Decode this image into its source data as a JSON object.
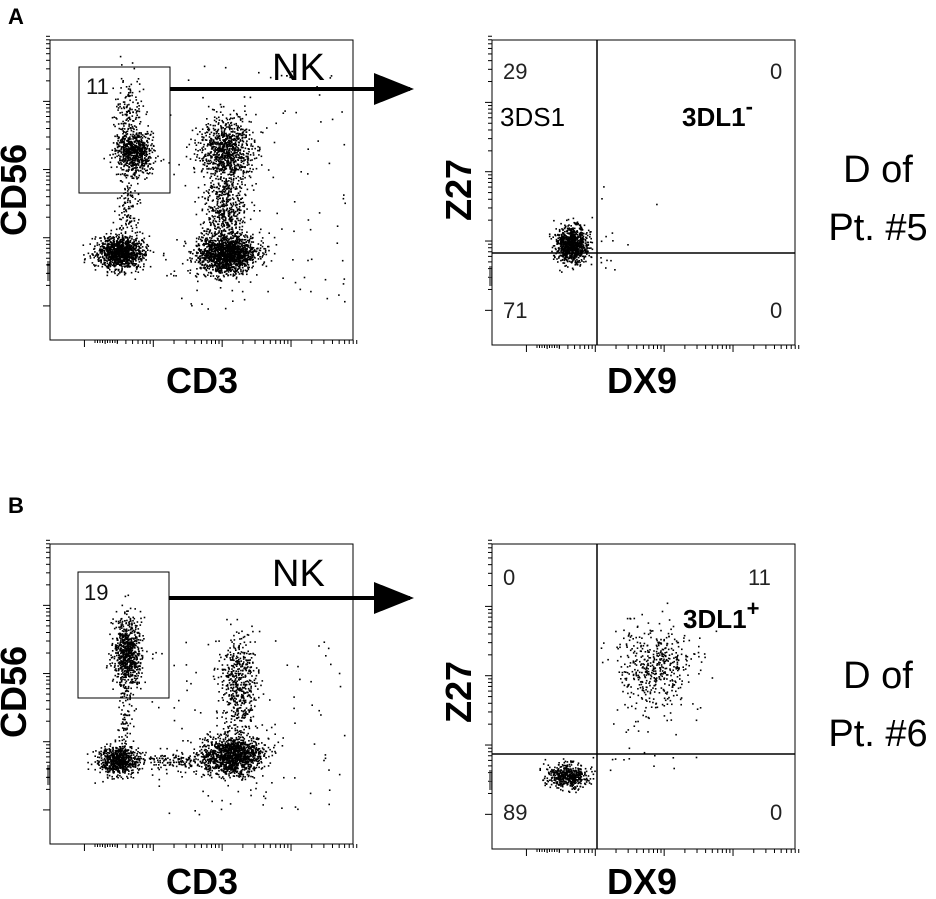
{
  "panels": [
    {
      "letter": "A",
      "gate_plot": {
        "x_label": "CD3",
        "y_label": "CD56",
        "gate_value": "11",
        "gate_name": "NK"
      },
      "quad_plot": {
        "x_label": "DX9",
        "y_label": "Z27",
        "q_ul": "29",
        "q_ur": "0",
        "q_ll": "71",
        "q_lr": "0",
        "pop_left": "3DS1",
        "pop_right": "3DL1",
        "pop_right_sup": "-"
      },
      "donor": [
        "D of",
        "Pt. #5"
      ]
    },
    {
      "letter": "B",
      "gate_plot": {
        "x_label": "CD3",
        "y_label": "CD56",
        "gate_value": "19",
        "gate_name": "NK"
      },
      "quad_plot": {
        "x_label": "DX9",
        "y_label": "Z27",
        "q_ul": "0",
        "q_ur": "11",
        "q_ll": "89",
        "q_lr": "0",
        "pop_left": "",
        "pop_right": "3DL1",
        "pop_right_sup": "+"
      },
      "donor": [
        "D of",
        "Pt. #6"
      ]
    }
  ],
  "chart_data": [
    {
      "type": "scatter",
      "panel": "A",
      "x_label": "CD3",
      "y_label": "CD56",
      "gates": [
        {
          "name": "NK",
          "percent": 11
        }
      ],
      "clusters": [
        {
          "population": "NK (CD3- CD56+)"
        },
        {
          "population": "CD3- CD56-"
        },
        {
          "population": "CD3+ CD56+"
        },
        {
          "population": "CD3+ CD56-"
        }
      ]
    },
    {
      "type": "scatter",
      "panel": "A",
      "x_label": "DX9",
      "y_label": "Z27",
      "quadrant_percent": {
        "upper_left": 29,
        "upper_right": 0,
        "lower_left": 71,
        "lower_right": 0
      },
      "population_labels": [
        "3DS1",
        "3DL1-"
      ]
    },
    {
      "type": "scatter",
      "panel": "B",
      "x_label": "CD3",
      "y_label": "CD56",
      "gates": [
        {
          "name": "NK",
          "percent": 19
        }
      ],
      "clusters": [
        {
          "population": "NK (CD3- CD56+)"
        },
        {
          "population": "CD3- CD56-"
        },
        {
          "population": "CD3+ CD56+"
        },
        {
          "population": "CD3+ CD56-"
        }
      ]
    },
    {
      "type": "scatter",
      "panel": "B",
      "x_label": "DX9",
      "y_label": "Z27",
      "quadrant_percent": {
        "upper_left": 0,
        "upper_right": 11,
        "lower_left": 89,
        "lower_right": 0
      },
      "population_labels": [
        "3DL1+"
      ]
    }
  ]
}
